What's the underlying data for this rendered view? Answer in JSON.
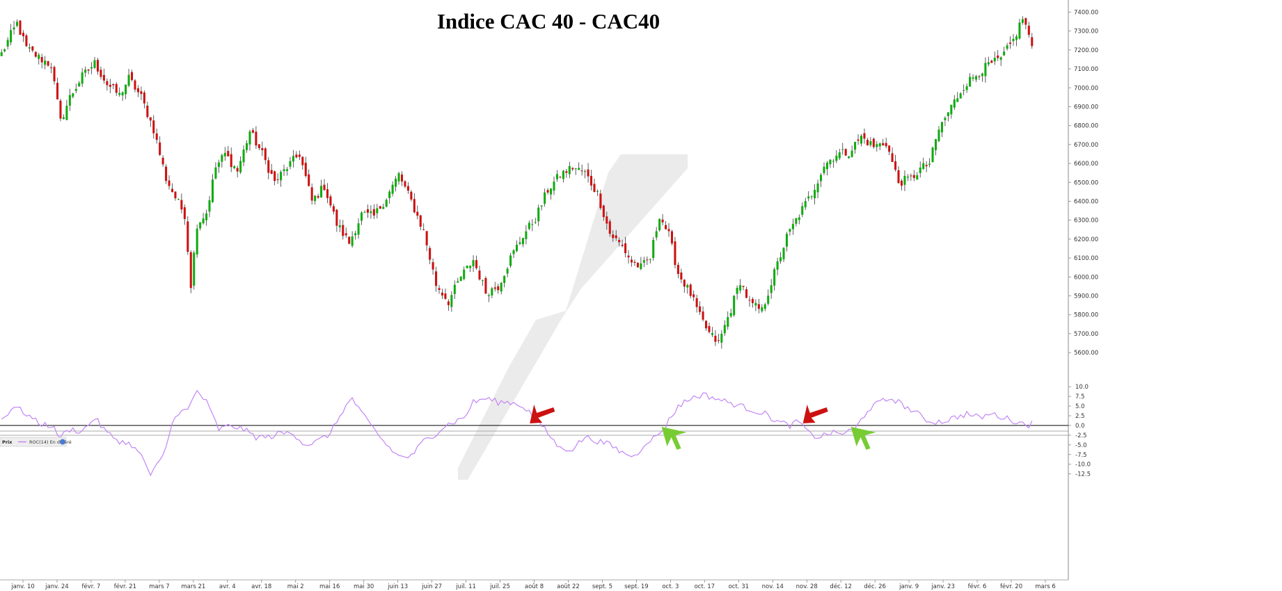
{
  "chart_data": [
    {
      "type": "candlestick",
      "title": "Indice CAC 40 - CAC40",
      "ylim": [
        5560,
        7420
      ],
      "y_ticks": [
        "7400.00",
        "7300.00",
        "7200.00",
        "7100.00",
        "7000.00",
        "6900.00",
        "6800.00",
        "6700.00",
        "6600.00",
        "6500.00",
        "6400.00",
        "6300.00",
        "6200.00",
        "6100.00",
        "6000.00",
        "5900.00",
        "5800.00",
        "5700.00",
        "5600.00"
      ],
      "x_ticks": [
        "janv. 10",
        "janv. 24",
        "févr. 7",
        "févr. 21",
        "mars 7",
        "mars 21",
        "avr. 4",
        "avr. 18",
        "mai 2",
        "mai 16",
        "mai 30",
        "juin 13",
        "juin 27",
        "juil. 11",
        "juil. 25",
        "août 8",
        "août 22",
        "sept. 5",
        "sept. 19",
        "oct. 3",
        "oct. 17",
        "oct. 31",
        "nov. 14",
        "nov. 28",
        "déc. 12",
        "déc. 26",
        "janv. 9",
        "janv. 23",
        "févr. 6",
        "févr. 20",
        "mars 6"
      ],
      "colors": {
        "up": "#11aa11",
        "down": "#cc1111"
      },
      "close_path": [
        [
          0,
          7180
        ],
        [
          3,
          7280
        ],
        [
          5,
          7340
        ],
        [
          8,
          7210
        ],
        [
          12,
          7160
        ],
        [
          16,
          7120
        ],
        [
          19,
          6820
        ],
        [
          22,
          6950
        ],
        [
          26,
          7060
        ],
        [
          30,
          7130
        ],
        [
          34,
          7020
        ],
        [
          38,
          6960
        ],
        [
          41,
          7050
        ],
        [
          45,
          6950
        ],
        [
          49,
          6780
        ],
        [
          53,
          6520
        ],
        [
          56,
          6420
        ],
        [
          59,
          6330
        ],
        [
          61,
          5960
        ],
        [
          63,
          6280
        ],
        [
          66,
          6340
        ],
        [
          69,
          6580
        ],
        [
          72,
          6650
        ],
        [
          76,
          6560
        ],
        [
          80,
          6770
        ],
        [
          84,
          6650
        ],
        [
          88,
          6500
        ],
        [
          92,
          6580
        ],
        [
          96,
          6650
        ],
        [
          100,
          6400
        ],
        [
          104,
          6480
        ],
        [
          108,
          6280
        ],
        [
          112,
          6180
        ],
        [
          116,
          6330
        ],
        [
          120,
          6320
        ],
        [
          124,
          6420
        ],
        [
          128,
          6540
        ],
        [
          132,
          6400
        ],
        [
          136,
          6240
        ],
        [
          140,
          5960
        ],
        [
          144,
          5870
        ],
        [
          148,
          6000
        ],
        [
          152,
          6090
        ],
        [
          156,
          5920
        ],
        [
          160,
          5950
        ],
        [
          164,
          6100
        ],
        [
          168,
          6220
        ],
        [
          172,
          6310
        ],
        [
          176,
          6460
        ],
        [
          180,
          6540
        ],
        [
          184,
          6580
        ],
        [
          188,
          6550
        ],
        [
          192,
          6440
        ],
        [
          196,
          6230
        ],
        [
          200,
          6160
        ],
        [
          203,
          6080
        ],
        [
          206,
          6050
        ],
        [
          209,
          6100
        ],
        [
          212,
          6330
        ],
        [
          215,
          6220
        ],
        [
          218,
          6020
        ],
        [
          222,
          5910
        ],
        [
          225,
          5790
        ],
        [
          228,
          5700
        ],
        [
          231,
          5650
        ],
        [
          235,
          5830
        ],
        [
          238,
          5980
        ],
        [
          241,
          5860
        ],
        [
          245,
          5820
        ],
        [
          249,
          6020
        ],
        [
          253,
          6210
        ],
        [
          257,
          6330
        ],
        [
          261,
          6440
        ],
        [
          265,
          6590
        ],
        [
          269,
          6650
        ],
        [
          273,
          6660
        ],
        [
          277,
          6740
        ],
        [
          281,
          6690
        ],
        [
          285,
          6710
        ],
        [
          289,
          6500
        ],
        [
          293,
          6520
        ],
        [
          296,
          6570
        ],
        [
          299,
          6600
        ],
        [
          302,
          6780
        ],
        [
          306,
          6900
        ],
        [
          310,
          7010
        ],
        [
          314,
          7070
        ],
        [
          318,
          7120
        ],
        [
          322,
          7150
        ],
        [
          326,
          7250
        ],
        [
          329,
          7370
        ],
        [
          331,
          7280
        ],
        [
          332,
          7200
        ]
      ]
    },
    {
      "type": "line",
      "legend": [
        "Prix",
        "ROC(14) En différé"
      ],
      "ylim": [
        -14,
        12
      ],
      "y_ticks": [
        "10.0",
        "7.5",
        "5.0",
        "2.5",
        "0.0",
        "-2.5",
        "-5.0",
        "-7.5",
        "-10.0",
        "-12.5"
      ],
      "colors": {
        "line": "#c285f5",
        "zero": "#000000"
      },
      "series": [
        {
          "values": [
            [
              0,
              1.5
            ],
            [
              4,
              5
            ],
            [
              8,
              3
            ],
            [
              12,
              0.5
            ],
            [
              16,
              0
            ],
            [
              19,
              -3
            ],
            [
              22,
              -1
            ],
            [
              26,
              -1.5
            ],
            [
              30,
              2
            ],
            [
              34,
              -2
            ],
            [
              38,
              -4
            ],
            [
              42,
              -5
            ],
            [
              46,
              -9
            ],
            [
              48,
              -13
            ],
            [
              52,
              -8
            ],
            [
              56,
              3
            ],
            [
              60,
              4
            ],
            [
              63,
              9
            ],
            [
              66,
              6
            ],
            [
              70,
              -1
            ],
            [
              74,
              0
            ],
            [
              78,
              -1
            ],
            [
              82,
              -3
            ],
            [
              86,
              -3
            ],
            [
              90,
              -2
            ],
            [
              94,
              -2
            ],
            [
              98,
              -5
            ],
            [
              102,
              -4
            ],
            [
              106,
              -2
            ],
            [
              110,
              4
            ],
            [
              113,
              7
            ],
            [
              116,
              3
            ],
            [
              120,
              -1
            ],
            [
              124,
              -5
            ],
            [
              128,
              -8
            ],
            [
              132,
              -8
            ],
            [
              136,
              -4
            ],
            [
              140,
              -2
            ],
            [
              143,
              0
            ],
            [
              146,
              1
            ],
            [
              149,
              2
            ],
            [
              152,
              6
            ],
            [
              156,
              7
            ],
            [
              160,
              6
            ],
            [
              164,
              6
            ],
            [
              168,
              5
            ],
            [
              172,
              2
            ],
            [
              176,
              -2
            ],
            [
              180,
              -6
            ],
            [
              184,
              -6
            ],
            [
              188,
              -3
            ],
            [
              192,
              -4
            ],
            [
              196,
              -5
            ],
            [
              200,
              -7
            ],
            [
              204,
              -8
            ],
            [
              208,
              -4
            ],
            [
              211,
              -3
            ],
            [
              214,
              0
            ],
            [
              218,
              5
            ],
            [
              222,
              7
            ],
            [
              226,
              8
            ],
            [
              230,
              7
            ],
            [
              234,
              6
            ],
            [
              238,
              5
            ],
            [
              242,
              4
            ],
            [
              246,
              3
            ],
            [
              250,
              1
            ],
            [
              254,
              0
            ],
            [
              257,
              1
            ],
            [
              260,
              -2
            ],
            [
              263,
              -3
            ],
            [
              267,
              -2
            ],
            [
              271,
              -2
            ],
            [
              275,
              -1
            ],
            [
              279,
              4
            ],
            [
              283,
              6
            ],
            [
              287,
              7
            ],
            [
              291,
              5
            ],
            [
              295,
              3
            ],
            [
              299,
              1
            ],
            [
              303,
              1
            ],
            [
              307,
              2
            ],
            [
              311,
              3
            ],
            [
              315,
              2
            ],
            [
              319,
              3
            ],
            [
              323,
              2
            ],
            [
              327,
              1
            ],
            [
              331,
              0
            ],
            [
              332,
              2
            ]
          ]
        }
      ],
      "signals": [
        {
          "type": "sell",
          "color": "#cc1111",
          "x": 172
        },
        {
          "type": "buy",
          "color": "#77cc33",
          "x": 214
        },
        {
          "type": "sell",
          "color": "#cc1111",
          "x": 260
        },
        {
          "type": "buy",
          "color": "#77cc33",
          "x": 275
        }
      ]
    }
  ]
}
